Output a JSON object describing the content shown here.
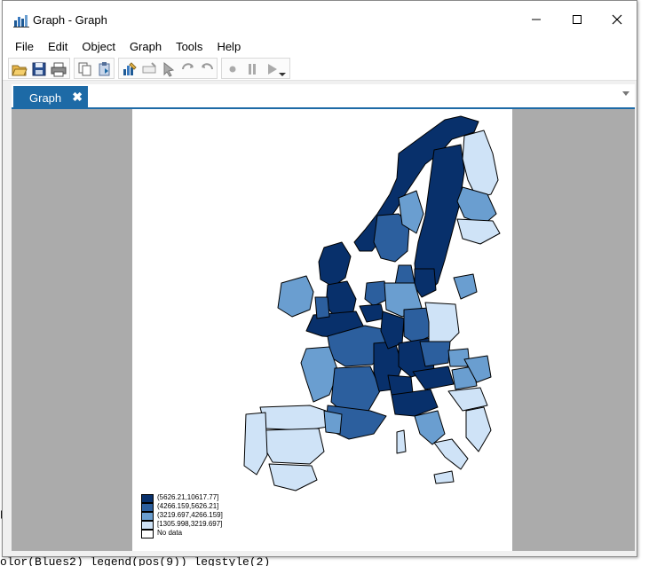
{
  "window": {
    "title": "Graph - Graph"
  },
  "menu": [
    "File",
    "Edit",
    "Object",
    "Graph",
    "Tools",
    "Help"
  ],
  "tabs": [
    {
      "label": "Graph",
      "close": "✖"
    }
  ],
  "legend": {
    "entries": [
      {
        "label": "(5626.21,10617.77]",
        "color": "#08306b"
      },
      {
        "label": "(4266.159,5626.21]",
        "color": "#2c5f9e"
      },
      {
        "label": "(3219.697,4266.159]",
        "color": "#6a9ed0"
      },
      {
        "label": "[1305.998,3219.697]",
        "color": "#cfe3f7"
      },
      {
        "label": "No data",
        "color": "#ffffff"
      }
    ]
  },
  "console": {
    "left_fragment": "p:",
    "command_line": "olor(Blues2) legend(pos(9)) legstyle(2)"
  },
  "colors": {
    "accent": "#1d6aa6",
    "canvas": "#ababab",
    "map_border": "#000000"
  }
}
